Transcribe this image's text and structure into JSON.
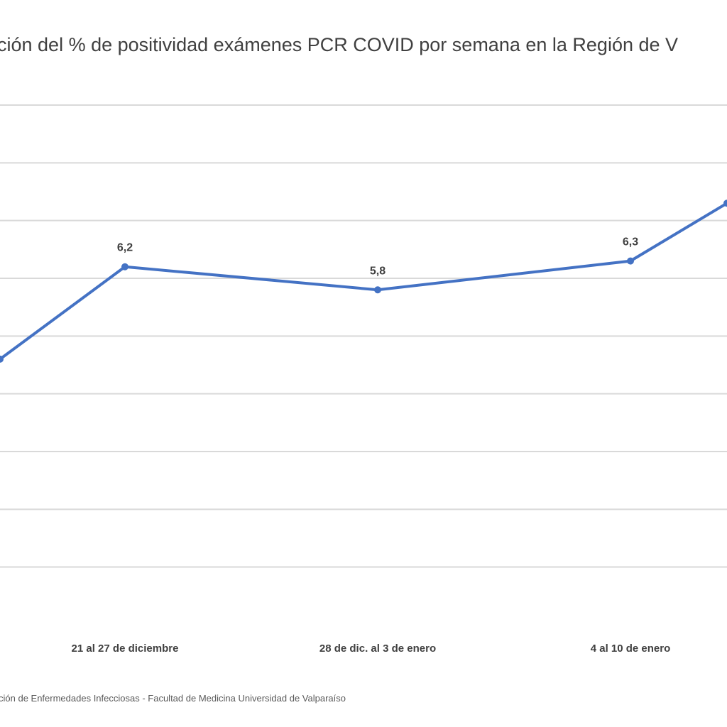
{
  "chart_data": {
    "type": "line",
    "title": "ción del % de positividad exámenes PCR COVID por semana en la Región de V",
    "categories": [
      "",
      "21 al 27 de diciembre",
      "28 de dic. al 3 de enero",
      "4 al 10 de enero",
      ""
    ],
    "series": [
      {
        "values": [
          4.6,
          6.2,
          5.8,
          6.3,
          7.3
        ],
        "data_labels": [
          "",
          "6,2",
          "5,8",
          "6,3",
          ""
        ]
      }
    ],
    "ylim": [
      0,
      9
    ],
    "gridlines": [
      1,
      2,
      3,
      4,
      5,
      6,
      7,
      8,
      9
    ],
    "grid": true,
    "legend": "none",
    "source": "ción de Enfermedades Infecciosas - Facultad de Medicina Universidad de Valparaíso",
    "colors": {
      "line": "#4472c4",
      "grid": "#d9d9d9",
      "text": "#404040"
    }
  }
}
